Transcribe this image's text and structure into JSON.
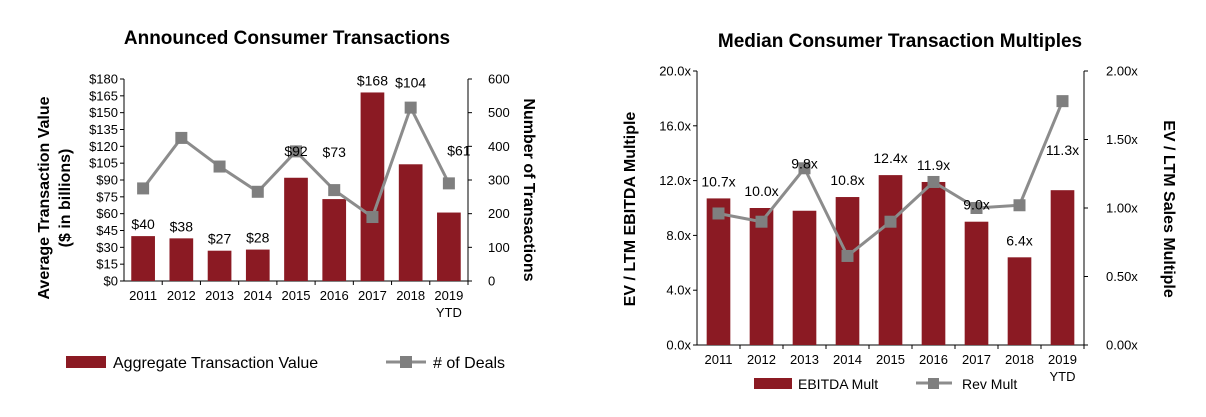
{
  "colors": {
    "bar": "#8b1a23",
    "line": "#8c8c8c",
    "marker": "#7f7f7f"
  },
  "chart_data": [
    {
      "type": "bar+line",
      "title": "Announced Consumer Transactions",
      "categories": [
        "2011",
        "2012",
        "2013",
        "2014",
        "2015",
        "2016",
        "2017",
        "2018",
        "2019"
      ],
      "category_sublabels": [
        "",
        "",
        "",
        "",
        "",
        "",
        "",
        "",
        "YTD"
      ],
      "ylabel_left": "Average Transaction Value",
      "ylabel_left_sub": "($ in billions)",
      "ylabel_right": "Number of Transactions",
      "left_ticks": [
        "$0",
        "$15",
        "$30",
        "$45",
        "$60",
        "$75",
        "$90",
        "$105",
        "$120",
        "$135",
        "$150",
        "$165",
        "$180"
      ],
      "right_ticks": [
        "0",
        "100",
        "200",
        "300",
        "400",
        "500",
        "600"
      ],
      "ylim_left": [
        0,
        180
      ],
      "ylim_right": [
        0,
        600
      ],
      "series": [
        {
          "name": "Aggregate Transaction Value",
          "type": "bar",
          "axis": "left",
          "values": [
            40,
            38,
            27,
            28,
            92,
            73,
            168,
            104,
            61
          ],
          "labels": [
            "$40",
            "$38",
            "$27",
            "$28",
            "$92",
            "$73",
            "$168",
            "$104",
            "$61"
          ]
        },
        {
          "name": "# of Deals",
          "type": "line",
          "axis": "right",
          "values": [
            275,
            425,
            340,
            265,
            385,
            270,
            190,
            515,
            290
          ]
        }
      ],
      "legend": [
        "Aggregate Transaction Value",
        "# of Deals"
      ]
    },
    {
      "type": "bar+line",
      "title": "Median Consumer Transaction Multiples",
      "categories": [
        "2011",
        "2012",
        "2013",
        "2014",
        "2015",
        "2016",
        "2017",
        "2018",
        "2019"
      ],
      "category_sublabels": [
        "",
        "",
        "",
        "",
        "",
        "",
        "",
        "",
        "YTD"
      ],
      "ylabel_left": "EV / LTM EBITDA Multiple",
      "ylabel_right": "EV / LTM Sales Multiple",
      "left_ticks": [
        "0.0x",
        "4.0x",
        "8.0x",
        "12.0x",
        "16.0x",
        "20.0x"
      ],
      "right_ticks": [
        "0.00x",
        "0.50x",
        "1.00x",
        "1.50x",
        "2.00x"
      ],
      "ylim_left": [
        0,
        20
      ],
      "ylim_right": [
        0,
        2
      ],
      "series": [
        {
          "name": "EBITDA Mult",
          "type": "bar",
          "axis": "left",
          "values": [
            10.7,
            10.0,
            9.8,
            10.8,
            12.4,
            11.9,
            9.0,
            6.4,
            11.3
          ],
          "labels": [
            "10.7x",
            "10.0x",
            "9.8x",
            "10.8x",
            "12.4x",
            "11.9x",
            "9.0x",
            "6.4x",
            "11.3x"
          ]
        },
        {
          "name": "Rev Mult",
          "type": "line",
          "axis": "right",
          "values": [
            0.96,
            0.9,
            1.29,
            0.65,
            0.9,
            1.19,
            1.0,
            1.02,
            1.78
          ]
        }
      ],
      "legend": [
        "EBITDA Mult",
        "Rev Mult"
      ]
    }
  ]
}
